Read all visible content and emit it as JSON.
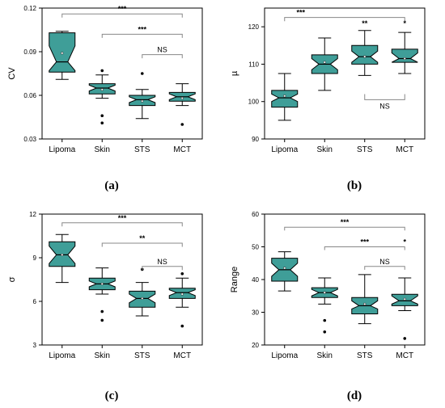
{
  "colors": {
    "box_fill": "#3f9e98",
    "box_stroke": "#000000",
    "axis": "#000000",
    "bracket": "#888888"
  },
  "chart_data": [
    {
      "type": "box",
      "panel": "a",
      "caption": "(a)",
      "ylabel": "CV",
      "ylim": [
        0.03,
        0.12
      ],
      "yticks": [
        0.03,
        0.06,
        0.09,
        0.12
      ],
      "ytick_labels": [
        "0.03",
        "0.06",
        "0.09",
        "0.12"
      ],
      "categories": [
        "Lipoma",
        "Skin",
        "STS",
        "MCT"
      ],
      "boxes": [
        {
          "min": 0.071,
          "q1": 0.076,
          "median": 0.083,
          "q3": 0.103,
          "max": 0.104,
          "mean": 0.089,
          "notch_lo": 0.077,
          "notch_hi": 0.094,
          "outliers": []
        },
        {
          "min": 0.058,
          "q1": 0.061,
          "median": 0.065,
          "q3": 0.068,
          "max": 0.074,
          "mean": 0.064,
          "notch_lo": 0.063,
          "notch_hi": 0.067,
          "outliers": [
            0.046,
            0.041,
            0.077
          ]
        },
        {
          "min": 0.044,
          "q1": 0.053,
          "median": 0.057,
          "q3": 0.06,
          "max": 0.064,
          "mean": 0.056,
          "notch_lo": 0.055,
          "notch_hi": 0.059,
          "outliers": [
            0.075
          ]
        },
        {
          "min": 0.053,
          "q1": 0.056,
          "median": 0.059,
          "q3": 0.062,
          "max": 0.068,
          "mean": 0.058,
          "notch_lo": 0.057,
          "notch_hi": 0.061,
          "outliers": [
            0.04
          ]
        }
      ],
      "annotations": [
        {
          "from": 0,
          "to": 3,
          "y": 0.116,
          "label": "***",
          "drop": 0.0025
        },
        {
          "from": 1,
          "to": 3,
          "y": 0.102,
          "label": "***",
          "drop": 0.0025
        },
        {
          "from": 2,
          "to": 3,
          "y": 0.088,
          "label": "NS",
          "drop": 0.0025
        }
      ]
    },
    {
      "type": "box",
      "panel": "b",
      "caption": "(b)",
      "ylabel": "µ",
      "ylim": [
        90,
        125
      ],
      "yticks": [
        90,
        100,
        110,
        120
      ],
      "ytick_labels": [
        "90",
        "100",
        "110",
        "120"
      ],
      "categories": [
        "Lipoma",
        "Skin",
        "STS",
        "MCT"
      ],
      "boxes": [
        {
          "min": 95,
          "q1": 98.5,
          "median": 101,
          "q3": 103,
          "max": 107.5,
          "mean": 101.5,
          "notch_lo": 100,
          "notch_hi": 102,
          "outliers": []
        },
        {
          "min": 103,
          "q1": 107.5,
          "median": 110,
          "q3": 112.5,
          "max": 117,
          "mean": 110.5,
          "notch_lo": 108.5,
          "notch_hi": 111.5,
          "outliers": []
        },
        {
          "min": 107,
          "q1": 110,
          "median": 112,
          "q3": 115,
          "max": 119,
          "mean": 112,
          "notch_lo": 110.5,
          "notch_hi": 113.5,
          "outliers": []
        },
        {
          "min": 107.5,
          "q1": 110.5,
          "median": 111.5,
          "q3": 114,
          "max": 118.5,
          "mean": 111.5,
          "notch_lo": 110.5,
          "notch_hi": 113,
          "outliers": []
        }
      ],
      "annotations": [
        {
          "from": 0,
          "to": 3,
          "y": 122.5,
          "label": "***",
          "drop": 1,
          "label_pos": "left"
        },
        {
          "from": 2,
          "to": 3,
          "y": 100.5,
          "label": "NS",
          "drop": -1.5
        }
      ],
      "markers": [
        {
          "at": 2,
          "y": 120.2,
          "label": "**"
        },
        {
          "at": 3,
          "y": 120.2,
          "label": "*"
        }
      ]
    },
    {
      "type": "box",
      "panel": "c",
      "caption": "(c)",
      "ylabel": "σ",
      "ylim": [
        3,
        12
      ],
      "yticks": [
        3,
        6,
        9,
        12
      ],
      "ytick_labels": [
        "3",
        "6",
        "9",
        "12"
      ],
      "categories": [
        "Lipoma",
        "Skin",
        "STS",
        "MCT"
      ],
      "boxes": [
        {
          "min": 7.3,
          "q1": 8.4,
          "median": 9.2,
          "q3": 10.1,
          "max": 10.6,
          "mean": 9.2,
          "notch_lo": 8.6,
          "notch_hi": 9.8,
          "outliers": []
        },
        {
          "min": 6.5,
          "q1": 6.8,
          "median": 7.2,
          "q3": 7.6,
          "max": 8.3,
          "mean": 7.2,
          "notch_lo": 7.0,
          "notch_hi": 7.4,
          "outliers": [
            5.3,
            4.7
          ]
        },
        {
          "min": 5.0,
          "q1": 5.6,
          "median": 6.2,
          "q3": 6.7,
          "max": 7.3,
          "mean": 6.2,
          "notch_lo": 5.9,
          "notch_hi": 6.5,
          "outliers": [
            8.2
          ]
        },
        {
          "min": 5.6,
          "q1": 6.2,
          "median": 6.6,
          "q3": 6.9,
          "max": 7.6,
          "mean": 6.5,
          "notch_lo": 6.4,
          "notch_hi": 6.8,
          "outliers": [
            7.9,
            4.3
          ]
        }
      ],
      "annotations": [
        {
          "from": 0,
          "to": 3,
          "y": 11.4,
          "label": "***",
          "drop": 0.25
        },
        {
          "from": 1,
          "to": 3,
          "y": 10.0,
          "label": "**",
          "drop": 0.25
        },
        {
          "from": 2,
          "to": 3,
          "y": 8.4,
          "label": "NS",
          "drop": 0.25
        }
      ]
    },
    {
      "type": "box",
      "panel": "d",
      "caption": "(d)",
      "ylabel": "Range",
      "ylim": [
        20,
        60
      ],
      "yticks": [
        20,
        30,
        40,
        50,
        60
      ],
      "ytick_labels": [
        "20",
        "30",
        "40",
        "50",
        "60"
      ],
      "categories": [
        "Lipoma",
        "Skin",
        "STS",
        "MCT"
      ],
      "boxes": [
        {
          "min": 36.5,
          "q1": 39.5,
          "median": 43,
          "q3": 46.5,
          "max": 48.5,
          "mean": 43.5,
          "notch_lo": 41,
          "notch_hi": 45,
          "outliers": []
        },
        {
          "min": 32.5,
          "q1": 34.5,
          "median": 36,
          "q3": 37.5,
          "max": 40.5,
          "mean": 36,
          "notch_lo": 35,
          "notch_hi": 37,
          "outliers": [
            27.5,
            24
          ]
        },
        {
          "min": 26.5,
          "q1": 29.5,
          "median": 32,
          "q3": 34.5,
          "max": 41.5,
          "mean": 32.5,
          "notch_lo": 31,
          "notch_hi": 33.5,
          "outliers": []
        },
        {
          "min": 30.5,
          "q1": 32,
          "median": 33.5,
          "q3": 35.5,
          "max": 40.5,
          "mean": 34,
          "notch_lo": 32.5,
          "notch_hi": 35,
          "outliers": [
            22
          ]
        }
      ],
      "annotations": [
        {
          "from": 0,
          "to": 3,
          "y": 56,
          "label": "***",
          "drop": 1
        },
        {
          "from": 1,
          "to": 3,
          "y": 50,
          "label": "***",
          "drop": 1
        },
        {
          "from": 2,
          "to": 3,
          "y": 44,
          "label": "NS",
          "drop": 1
        }
      ],
      "markers": [
        {
          "at": 3,
          "y": 50.7,
          "label": "*"
        }
      ]
    }
  ]
}
